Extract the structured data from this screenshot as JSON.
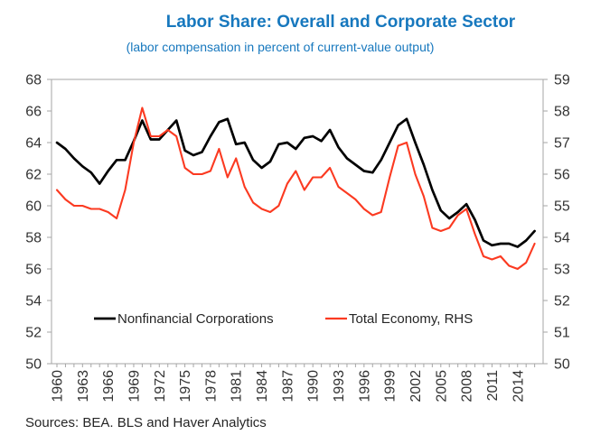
{
  "header": {
    "title": "Labor Share: Overall and Corporate Sector",
    "subtitle": "(labor compensation in percent of current-value output)"
  },
  "legend": [
    {
      "label": "Nonfinancial Corporations",
      "color": "#000000"
    },
    {
      "label": "Total Economy, RHS",
      "color": "#fb3a21"
    }
  ],
  "footer": {
    "source_note": "Sources: BEA. BLS and Haver Analytics"
  },
  "colors": {
    "title_blue": "#1778be",
    "series_black": "#000000",
    "series_red": "#fb3a21",
    "axis_line": "#a6a6a6",
    "tick_label": "#333333"
  },
  "chart_data": {
    "type": "line",
    "title": "Labor Share: Overall and Corporate Sector",
    "subtitle": "(labor compensation in percent of current-value output)",
    "grid": false,
    "legend_position": "bottom-inside",
    "x": [
      1960,
      1961,
      1962,
      1963,
      1964,
      1965,
      1966,
      1967,
      1968,
      1969,
      1970,
      1971,
      1972,
      1973,
      1974,
      1975,
      1976,
      1977,
      1978,
      1979,
      1980,
      1981,
      1982,
      1983,
      1984,
      1985,
      1986,
      1987,
      1988,
      1989,
      1990,
      1991,
      1992,
      1993,
      1994,
      1995,
      1996,
      1997,
      1998,
      1999,
      2000,
      2001,
      2002,
      2003,
      2004,
      2005,
      2006,
      2007,
      2008,
      2009,
      2010,
      2011,
      2012,
      2013,
      2014,
      2015,
      2016
    ],
    "series": [
      {
        "name": "Nonfinancial Corporations",
        "axis": "left",
        "color": "#000000",
        "values": [
          64.0,
          63.6,
          63.0,
          62.5,
          62.1,
          61.4,
          62.2,
          62.9,
          62.9,
          64.1,
          65.4,
          64.2,
          64.2,
          64.8,
          65.4,
          63.5,
          63.2,
          63.4,
          64.4,
          65.3,
          65.5,
          63.9,
          64.0,
          62.9,
          62.4,
          62.8,
          63.9,
          64.0,
          63.6,
          64.3,
          64.4,
          64.1,
          64.8,
          63.7,
          63.0,
          62.6,
          62.2,
          62.1,
          62.9,
          64.0,
          65.1,
          65.5,
          64.0,
          62.6,
          61.0,
          59.7,
          59.2,
          59.6,
          60.1,
          59.1,
          57.8,
          57.5,
          57.6,
          57.6,
          57.4,
          57.8,
          58.4
        ]
      },
      {
        "name": "Total Economy, RHS",
        "axis": "right",
        "color": "#fb3a21",
        "values": [
          55.5,
          55.2,
          55.0,
          55.0,
          54.9,
          54.9,
          54.8,
          54.6,
          55.5,
          57.0,
          58.1,
          57.2,
          57.2,
          57.4,
          57.2,
          56.2,
          56.0,
          56.0,
          56.1,
          56.8,
          55.9,
          56.5,
          55.6,
          55.1,
          54.9,
          54.8,
          55.0,
          55.7,
          56.1,
          55.5,
          55.9,
          55.9,
          56.2,
          55.6,
          55.4,
          55.2,
          54.9,
          54.7,
          54.8,
          55.9,
          56.9,
          57.0,
          56.0,
          55.3,
          54.3,
          54.2,
          54.3,
          54.7,
          54.9,
          54.1,
          53.4,
          53.3,
          53.4,
          53.1,
          53.0,
          53.2,
          53.8
        ]
      }
    ],
    "left_axis": {
      "min": 50,
      "max": 68,
      "tick_step": 2,
      "ticks": [
        68,
        66,
        64,
        62,
        60,
        58,
        56,
        54,
        52,
        50
      ]
    },
    "right_axis": {
      "min": 50,
      "max": 59,
      "tick_step": 1,
      "ticks": [
        59,
        58,
        57,
        56,
        55,
        54,
        53,
        52,
        51,
        50
      ]
    },
    "x_axis": {
      "labeled_years": [
        1960,
        1963,
        1966,
        1969,
        1972,
        1975,
        1978,
        1981,
        1984,
        1987,
        1990,
        1993,
        1996,
        1999,
        2002,
        2005,
        2008,
        2011,
        2014
      ],
      "minor_tick_every_years": 1
    }
  }
}
